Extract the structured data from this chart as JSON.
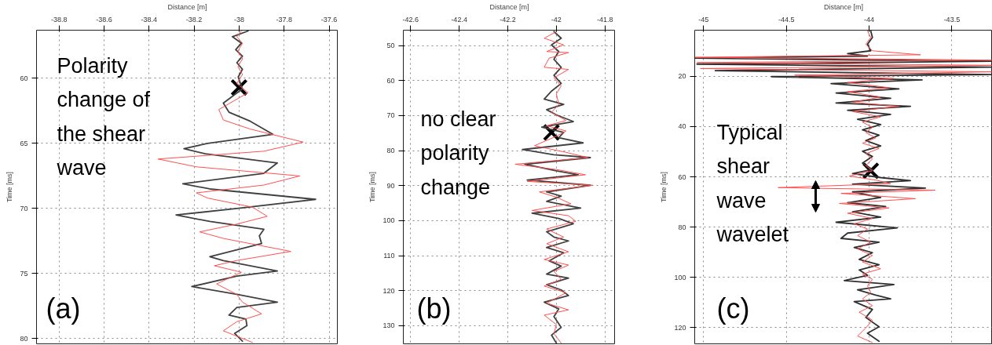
{
  "chart_data": [
    {
      "type": "line",
      "xlabel": "Distance [m]",
      "ylabel": "Time [ms]",
      "xlim": [
        -38.9,
        -37.56
      ],
      "ylim": [
        80.4,
        56.3
      ],
      "xticks": [
        -38.8,
        -38.6,
        -38.4,
        -38.2,
        -38,
        -37.8,
        -37.6
      ],
      "yticks": [
        60,
        65,
        70,
        75,
        80
      ],
      "grid": true,
      "line_style": "solid",
      "series": [
        {
          "color": "#404040",
          "x": [
            -37.96,
            -38.03,
            -37.99,
            -38.015,
            -37.985,
            -38.01,
            -37.985,
            -38.004,
            -37.985,
            -38.07,
            -38.045,
            -37.95,
            -37.85,
            -38.14,
            -38.245,
            -38.15,
            -37.83,
            -37.89,
            -38.25,
            -38.13,
            -37.66,
            -38.01,
            -38.28,
            -38.13,
            -37.89,
            -37.91,
            -37.9,
            -38.13,
            -38.07,
            -37.83,
            -38.01,
            -38.21,
            -38.01,
            -37.83,
            -38.01,
            -38.045,
            -37.97,
            -37.965,
            -38.02,
            -37.985
          ],
          "values": [
            56.36,
            56.8,
            57.3,
            57.8,
            58.3,
            58.8,
            59.3,
            59.9,
            60.8,
            61.9,
            62.6,
            63.3,
            64.3,
            65.0,
            65.4,
            65.8,
            66.5,
            67.3,
            68.1,
            68.5,
            69.3,
            70.0,
            70.5,
            71.0,
            71.6,
            72.1,
            72.7,
            73.7,
            74.0,
            74.8,
            75.2,
            76.0,
            76.6,
            77.2,
            77.6,
            78.2,
            78.5,
            79.0,
            79.6,
            80.2
          ]
        },
        {
          "color": "#ff5050",
          "x": [
            -37.99,
            -38.01,
            -37.985,
            -38.005,
            -37.985,
            -38.005,
            -37.985,
            -38.01,
            -37.96,
            -38.09,
            -38.07,
            -37.95,
            -37.715,
            -37.89,
            -38.36,
            -38.19,
            -37.73,
            -37.89,
            -38.19,
            -38.14,
            -37.94,
            -37.875,
            -38.01,
            -38.175,
            -38.07,
            -37.77,
            -38.01,
            -38.11,
            -37.99,
            -38.1,
            -38.01,
            -37.985,
            -37.965,
            -37.9,
            -38.01,
            -38.07,
            -37.94
          ],
          "values": [
            56.36,
            56.8,
            57.3,
            57.9,
            58.5,
            59.1,
            59.7,
            60.4,
            61.1,
            62.4,
            63.2,
            63.9,
            64.9,
            65.6,
            66.2,
            66.8,
            67.5,
            68.2,
            68.8,
            69.2,
            69.9,
            70.6,
            71.2,
            71.8,
            72.3,
            73.3,
            74.0,
            74.4,
            74.9,
            75.8,
            76.6,
            77.2,
            77.4,
            78.1,
            78.7,
            79.4,
            80.3
          ]
        },
        {
          "type": "scatter",
          "marker": "cross",
          "color": "#000000",
          "x": [
            -38.0
          ],
          "values": [
            60.7
          ]
        }
      ],
      "annotations": [
        "Polarity change of the shear wave",
        "(a)"
      ]
    },
    {
      "type": "line",
      "xlabel": "Distance [m]",
      "ylabel": "Time [ms]",
      "xlim": [
        -42.63,
        -41.757
      ],
      "ylim": [
        135.2,
        45.6
      ],
      "xticks": [
        -42.6,
        -42.4,
        -42.2,
        -42,
        -41.8
      ],
      "yticks": [
        50,
        60,
        70,
        80,
        90,
        100,
        110,
        120,
        130
      ],
      "grid": true,
      "line_style": "solid",
      "series": [
        {
          "color": "#404040",
          "x": [
            -42.01,
            -41.98,
            -42.02,
            -41.99,
            -42.01,
            -41.98,
            -42.01,
            -41.98,
            -42.02,
            -42.05,
            -41.97,
            -42.04,
            -42.0,
            -41.93,
            -42.06,
            -41.97,
            -41.99,
            -41.89,
            -42.14,
            -42.01,
            -41.86,
            -42.13,
            -42.0,
            -41.91,
            -42.12,
            -41.86,
            -42.04,
            -41.98,
            -42.04,
            -41.9,
            -42.1,
            -41.99,
            -41.93,
            -42.04,
            -42.01,
            -41.95,
            -42.04,
            -41.97,
            -42.03,
            -41.98,
            -42.04,
            -41.95,
            -42.04,
            -41.98,
            -41.95,
            -42.05,
            -41.99,
            -42.01,
            -41.98,
            -42.02,
            -42.0
          ],
          "values": [
            46.0,
            47.9,
            49.8,
            51.7,
            53.9,
            56.2,
            58.5,
            60.8,
            63.0,
            65.3,
            66.8,
            68.3,
            69.8,
            71.7,
            73.3,
            74.8,
            76.3,
            77.8,
            79.7,
            81.2,
            82.0,
            83.9,
            85.8,
            86.9,
            88.4,
            89.9,
            91.8,
            93.0,
            94.5,
            96.4,
            97.9,
            99.4,
            100.9,
            103.2,
            104.7,
            105.8,
            107.7,
            109.2,
            111.5,
            113.0,
            115.3,
            116.4,
            118.3,
            119.8,
            121.4,
            123.3,
            125.2,
            127.4,
            130.5,
            132.7,
            135.0
          ]
        },
        {
          "color": "#ff5050",
          "x": [
            -42.0,
            -42.05,
            -41.97,
            -42.04,
            -41.95,
            -42.03,
            -42.05,
            -41.95,
            -42.01,
            -41.98,
            -42.0,
            -41.99,
            -42.02,
            -41.96,
            -42.04,
            -41.96,
            -42.0,
            -42.09,
            -41.96,
            -41.87,
            -42.17,
            -42.0,
            -41.88,
            -42.12,
            -41.85,
            -42.07,
            -42.0,
            -41.94,
            -42.1,
            -41.95,
            -41.92,
            -42.04,
            -41.97,
            -42.04,
            -41.95,
            -42.05,
            -41.95,
            -42.01,
            -41.98,
            -42.05,
            -41.96,
            -42.04,
            -41.95,
            -42.05,
            -42.0,
            -42.01,
            -41.98
          ],
          "values": [
            46.0,
            47.9,
            49.8,
            51.7,
            52.0,
            53.6,
            56.2,
            56.8,
            59.2,
            61.5,
            63.8,
            66.8,
            69.1,
            71.4,
            72.9,
            74.4,
            75.9,
            78.6,
            80.5,
            82.0,
            83.9,
            85.4,
            86.9,
            88.8,
            89.9,
            91.8,
            93.3,
            95.2,
            97.1,
            98.6,
            100.2,
            102.4,
            104.7,
            106.6,
            108.9,
            111.1,
            112.7,
            114.5,
            116.8,
            118.7,
            120.6,
            123.6,
            125.5,
            127.0,
            129.7,
            132.3,
            135.0
          ]
        },
        {
          "type": "scatter",
          "marker": "cross",
          "color": "#000000",
          "x": [
            -42.02
          ],
          "values": [
            74.8
          ]
        }
      ],
      "annotations": [
        "no clear polarity change",
        "(b)"
      ]
    },
    {
      "type": "line",
      "xlabel": "Distance [m]",
      "ylabel": "Time [ms]",
      "xlim": [
        -45.054,
        -43.255
      ],
      "ylim": [
        126.5,
        1.6
      ],
      "xticks": [
        -45,
        -44.5,
        -44,
        -43.5
      ],
      "yticks": [
        20,
        40,
        60,
        80,
        100,
        120
      ],
      "grid": true,
      "line_style": "solid",
      "series": [
        {
          "color": "#303030",
          "x": [
            -43.99,
            -43.98,
            -44.01,
            -43.99,
            -44.13,
            -44.01,
            -45.05,
            -43.26,
            -45.04,
            -43.26,
            -44.93,
            -43.26,
            -44.59,
            -43.68,
            -44.23,
            -43.82,
            -44.2,
            -43.87,
            -44.2,
            -43.75,
            -44.13,
            -43.87,
            -44.07,
            -43.93,
            -44.04,
            -43.94,
            -44.02,
            -43.93,
            -44.04,
            -43.98,
            -44.04,
            -43.98,
            -44.1,
            -43.93,
            -43.75,
            -44.1,
            -43.66,
            -44.1,
            -43.93,
            -44.13,
            -43.9,
            -44.1,
            -43.93,
            -44.2,
            -43.83,
            -44.13,
            -44.17,
            -43.94,
            -44.09,
            -43.98,
            -44.06,
            -43.94,
            -44.06,
            -44.01,
            -44.15,
            -43.85,
            -44.07,
            -43.96,
            -43.87,
            -44.09,
            -43.98,
            -44.02,
            -43.94,
            -44.01,
            -43.94
          ],
          "values": [
            1.9,
            4.5,
            7.2,
            9.8,
            10.9,
            11.9,
            12.7,
            14.0,
            15.1,
            16.3,
            17.7,
            19.3,
            20.1,
            21.4,
            22.9,
            25.0,
            26.6,
            28.7,
            30.6,
            31.9,
            33.5,
            35.1,
            37.1,
            39.2,
            41.3,
            43.4,
            45.6,
            47.7,
            49.8,
            51.9,
            54.5,
            57.1,
            58.7,
            60.3,
            61.5,
            62.9,
            64.5,
            66.0,
            68.2,
            70.3,
            71.8,
            73.9,
            76.0,
            78.1,
            80.3,
            82.4,
            84.5,
            86.0,
            88.1,
            90.2,
            92.9,
            95.0,
            97.1,
            99.2,
            101.3,
            102.9,
            105.0,
            107.1,
            108.6,
            109.7,
            112.8,
            116.0,
            119.7,
            122.3,
            125.5
          ]
        },
        {
          "color": "#ff5050",
          "x": [
            -44.01,
            -43.99,
            -44.02,
            -43.98,
            -43.69,
            -45.05,
            -43.26,
            -45.04,
            -43.26,
            -45.02,
            -43.26,
            -44.45,
            -43.85,
            -44.13,
            -43.88,
            -44.13,
            -43.93,
            -44.1,
            -43.82,
            -44.1,
            -43.93,
            -44.04,
            -43.98,
            -44.02,
            -43.96,
            -44.04,
            -43.94,
            -44.02,
            -43.98,
            -44.02,
            -43.98,
            -44.12,
            -43.96,
            -43.87,
            -44.55,
            -43.6,
            -44.17,
            -43.72,
            -44.18,
            -43.88,
            -44.13,
            -43.98,
            -44.09,
            -44.01,
            -44.07,
            -43.99,
            -44.07,
            -43.98,
            -44.04,
            -43.93,
            -44.04,
            -43.98,
            -44.01,
            -43.99,
            -44.04,
            -43.98,
            -44.06,
            -43.98,
            -44.02,
            -44.07,
            -43.98
          ],
          "values": [
            1.9,
            4.5,
            7.2,
            9.8,
            11.4,
            12.4,
            13.5,
            14.5,
            15.6,
            16.9,
            18.2,
            19.5,
            20.8,
            22.4,
            24.5,
            26.1,
            28.2,
            30.3,
            31.9,
            34.0,
            36.1,
            38.2,
            40.3,
            42.4,
            44.5,
            46.6,
            48.7,
            50.8,
            52.9,
            55.5,
            57.6,
            59.7,
            61.3,
            62.7,
            64.3,
            65.3,
            66.6,
            68.7,
            70.6,
            72.4,
            74.5,
            76.6,
            78.7,
            80.8,
            83.4,
            86.0,
            88.7,
            91.3,
            93.9,
            96.6,
            98.7,
            100.8,
            103.4,
            106.0,
            108.6,
            111.3,
            113.9,
            117.1,
            120.2,
            123.4,
            126.0
          ]
        },
        {
          "type": "scatter",
          "marker": "cross",
          "color": "#000000",
          "x": [
            -43.99
          ],
          "values": [
            57.6
          ]
        }
      ],
      "annotations": [
        "Typical shear wave wavelet",
        "(c)"
      ]
    }
  ]
}
